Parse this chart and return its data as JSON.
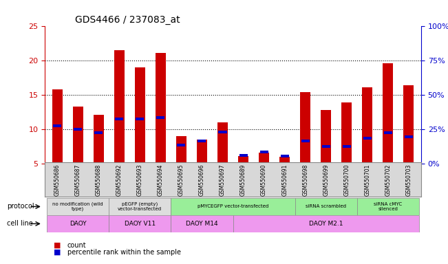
{
  "title": "GDS4466 / 237083_at",
  "samples": [
    "GSM550686",
    "GSM550687",
    "GSM550688",
    "GSM550692",
    "GSM550693",
    "GSM550694",
    "GSM550695",
    "GSM550696",
    "GSM550697",
    "GSM550689",
    "GSM550690",
    "GSM550691",
    "GSM550698",
    "GSM550699",
    "GSM550700",
    "GSM550701",
    "GSM550702",
    "GSM550703"
  ],
  "count_values": [
    15.8,
    13.3,
    12.1,
    21.5,
    19.0,
    21.1,
    9.0,
    8.5,
    11.0,
    6.1,
    6.6,
    6.0,
    15.4,
    12.8,
    13.9,
    16.1,
    19.6,
    16.4
  ],
  "percentile_values": [
    10.5,
    10.0,
    9.5,
    11.5,
    11.5,
    11.7,
    7.7,
    8.3,
    9.6,
    6.2,
    6.7,
    6.1,
    8.3,
    7.5,
    7.5,
    8.7,
    9.5,
    8.9
  ],
  "ylim": [
    5,
    25
  ],
  "yticks_left": [
    5,
    10,
    15,
    20,
    25
  ],
  "yticks_right": [
    0,
    25,
    50,
    75,
    100
  ],
  "bar_color": "#cc0000",
  "percentile_color": "#0000cc",
  "bar_width": 0.5,
  "protocol_groups": [
    {
      "label": "no modification (wild\ntype)",
      "start": 0,
      "end": 3,
      "color": "#dddddd"
    },
    {
      "label": "pEGFP (empty)\nvector-transfected",
      "start": 3,
      "end": 6,
      "color": "#dddddd"
    },
    {
      "label": "pMYCEGFP vector-transfected",
      "start": 6,
      "end": 12,
      "color": "#99ee99"
    },
    {
      "label": "siRNA scrambled",
      "start": 12,
      "end": 15,
      "color": "#99ee99"
    },
    {
      "label": "siRNA cMYC\nsilenced",
      "start": 15,
      "end": 18,
      "color": "#99ee99"
    }
  ],
  "cellline_groups": [
    {
      "label": "DAOY",
      "start": 0,
      "end": 3,
      "color": "#ee99ee"
    },
    {
      "label": "DAOY V11",
      "start": 3,
      "end": 6,
      "color": "#ee99ee"
    },
    {
      "label": "DAOY M14",
      "start": 6,
      "end": 9,
      "color": "#ee99ee"
    },
    {
      "label": "DAOY M2.1",
      "start": 9,
      "end": 18,
      "color": "#ee99ee"
    }
  ],
  "background_color": "#ffffff",
  "grid_color": "#000000",
  "axis_label_color_left": "#cc0000",
  "axis_label_color_right": "#0000cc"
}
